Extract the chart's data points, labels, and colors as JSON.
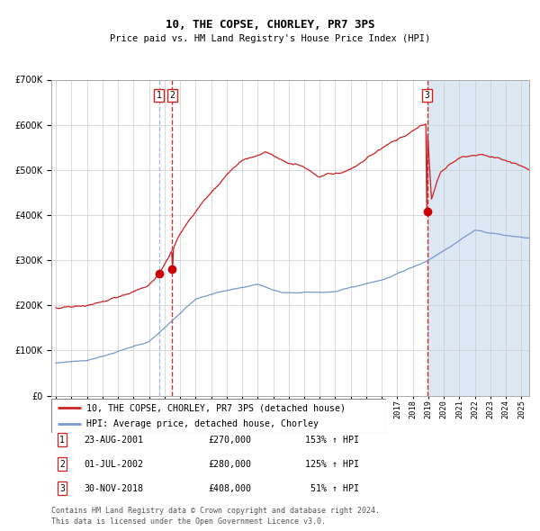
{
  "title": "10, THE COPSE, CHORLEY, PR7 3PS",
  "subtitle": "Price paid vs. HM Land Registry's House Price Index (HPI)",
  "legend_line1": "10, THE COPSE, CHORLEY, PR7 3PS (detached house)",
  "legend_line2": "HPI: Average price, detached house, Chorley",
  "sale_labels": [
    {
      "num": 1,
      "date": "23-AUG-2001",
      "price": 270000,
      "pct": "153%",
      "x_year": 2001.64
    },
    {
      "num": 2,
      "date": "01-JUL-2002",
      "price": 280000,
      "pct": "125%",
      "x_year": 2002.5
    },
    {
      "num": 3,
      "date": "30-NOV-2018",
      "price": 408000,
      "pct": "51%",
      "x_year": 2018.92
    }
  ],
  "footer_line1": "Contains HM Land Registry data © Crown copyright and database right 2024.",
  "footer_line2": "This data is licensed under the Open Government Licence v3.0.",
  "hpi_color": "#7799cc",
  "price_color": "#cc2222",
  "sale_dot_color": "#cc0000",
  "vline_color1": "#aabbdd",
  "vline_color2": "#cc3333",
  "shade_color": "#dde8f5",
  "ylim": [
    0,
    700000
  ],
  "xlim_start": 1994.7,
  "xlim_end": 2025.5
}
